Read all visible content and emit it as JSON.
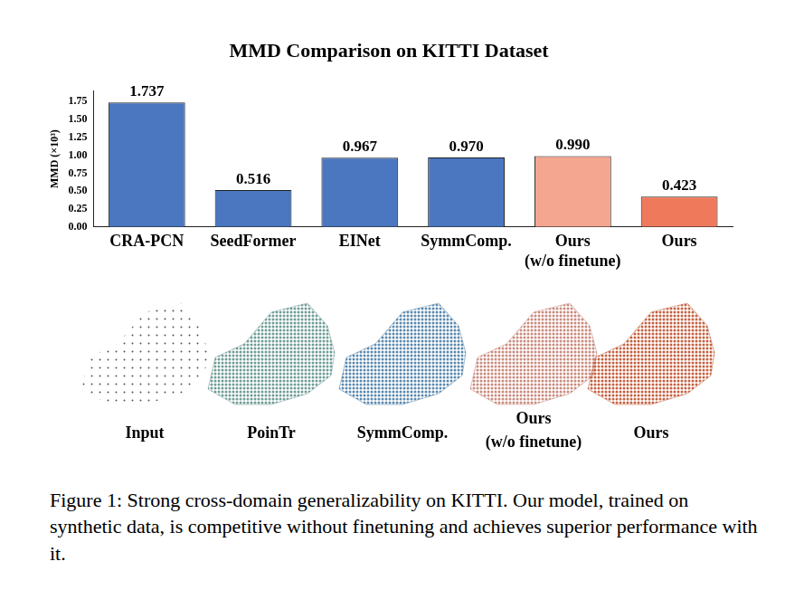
{
  "chart_data": {
    "type": "bar",
    "title": "MMD Comparison on KITTI Dataset",
    "y_label": "MMD (×10³)",
    "categories": [
      "CRA-PCN",
      "SeedFormer",
      "EINet",
      "SymmComp.",
      "Ours (w/o finetune)",
      "Ours"
    ],
    "values": [
      1.737,
      0.516,
      0.967,
      0.97,
      0.99,
      0.423
    ],
    "value_labels": [
      "1.737",
      "0.516",
      "0.967",
      "0.970",
      "0.990",
      "0.423"
    ],
    "colors": [
      "#4a77c0",
      "#4a77c0",
      "#4a77c0",
      "#4a77c0",
      "#f4a691",
      "#ef7a5b"
    ],
    "ylim": [
      0,
      1.9
    ],
    "yticks": [
      {
        "value": 0,
        "label": "0.00"
      },
      {
        "value": 0.25,
        "label": "0.25"
      },
      {
        "value": 0.5,
        "label": "0.50"
      },
      {
        "value": 0.75,
        "label": "0.75"
      },
      {
        "value": 1,
        "label": "1.00"
      },
      {
        "value": 1.25,
        "label": "1.25"
      },
      {
        "value": 1.5,
        "label": "1.50"
      },
      {
        "value": 1.75,
        "label": "1.75"
      }
    ],
    "grid": false,
    "data_labels": true
  },
  "figure": {
    "panels": [
      {
        "label": "Input",
        "color": "#555555"
      },
      {
        "label": "PoinTr",
        "color": "#6e9c95"
      },
      {
        "label": "SymmComp.",
        "color": "#5a88ad"
      },
      {
        "label": "Ours (w/o finetune)",
        "color": "#c98a7d"
      },
      {
        "label": "Ours",
        "color": "#c4603f"
      }
    ],
    "caption": "Figure 1: Strong cross-domain generalizability on KITTI. Our model, trained on synthetic data, is competitive without finetuning and achieves superior performance with it."
  }
}
